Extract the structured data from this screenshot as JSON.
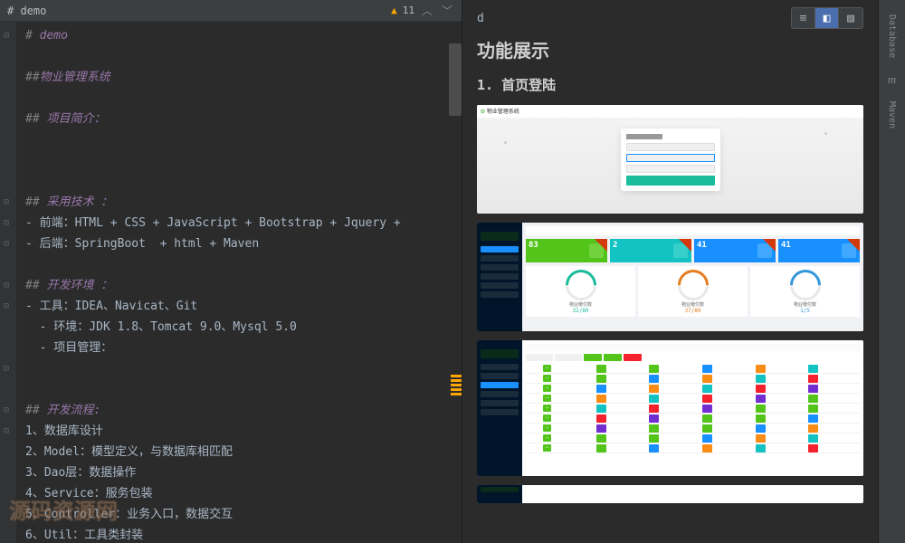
{
  "editor": {
    "tab_title": "# demo",
    "warning_count": "11",
    "lines": [
      {
        "type": "h1",
        "hash": "#",
        "text": " demo",
        "fold": true
      },
      {
        "type": "blank"
      },
      {
        "type": "h2",
        "hash": "##",
        "text": "物业管理系统"
      },
      {
        "type": "blank"
      },
      {
        "type": "h2i",
        "hash": "## ",
        "text": "项目简介："
      },
      {
        "type": "blank"
      },
      {
        "type": "blank"
      },
      {
        "type": "blank"
      },
      {
        "type": "h2i",
        "hash": "## ",
        "text": "采用技术 ：",
        "fold": true
      },
      {
        "type": "li",
        "text": "- 前端：HTML + CSS + JavaScript + Bootstrap + Jquery +",
        "fold": true
      },
      {
        "type": "li",
        "text": "- 后端：SpringBoot  + html + Maven",
        "fold": true
      },
      {
        "type": "blank"
      },
      {
        "type": "h2i",
        "hash": "## ",
        "text": "开发环境 ：",
        "fold": true
      },
      {
        "type": "li",
        "text": "- 工具：IDEA、Navicat、Git",
        "fold": true
      },
      {
        "type": "li2",
        "text": "  - 环境：JDK 1.8、Tomcat 9.0、Mysql 5.0"
      },
      {
        "type": "li2",
        "text": "  - 项目管理："
      },
      {
        "type": "blank",
        "fold": true
      },
      {
        "type": "blank"
      },
      {
        "type": "h2i",
        "hash": "## ",
        "text": "开发流程:",
        "fold": true
      },
      {
        "type": "li",
        "text": "1、数据库设计",
        "fold": true
      },
      {
        "type": "li",
        "text": "2、Model：模型定义，与数据库相匹配"
      },
      {
        "type": "li",
        "text": "3、Dao层：数据操作"
      },
      {
        "type": "li",
        "text": "4、Service：服务包装"
      },
      {
        "type": "li",
        "text": "5、Controller：业务入口，数据交互"
      },
      {
        "type": "li",
        "text": "6、Util：工具类封装"
      }
    ]
  },
  "preview": {
    "top_text": "d",
    "section_title": "功能展示",
    "subsection": "1. 首页登陆",
    "shot1": {
      "logo": "物业管理系统",
      "panel_title": "数据录入",
      "btn": "登录"
    },
    "shot2": {
      "stats": [
        {
          "num": "83",
          "bg": "#52c41a",
          "icon": "#73d13d"
        },
        {
          "num": "2",
          "bg": "#13c2c2",
          "icon": "#36cfc9"
        },
        {
          "num": "41",
          "bg": "#1890ff",
          "icon": "#40a9ff"
        },
        {
          "num": "41",
          "bg": "#1890ff",
          "icon": "#40a9ff"
        }
      ],
      "gauges": [
        {
          "label": "物业缴付数",
          "val": "32/80",
          "color": "#1abc9c"
        },
        {
          "label": "物业缴付数",
          "val": "37/80",
          "color": "#e67e22"
        },
        {
          "label": "物业缴付数",
          "val": "1/5",
          "color": "#3498db"
        }
      ]
    },
    "shot3": {
      "tag_colors": [
        "#52c41a",
        "#52c41a",
        "#1890ff",
        "#fa8c16",
        "#13c2c2",
        "#f5222d",
        "#722ed1"
      ]
    }
  },
  "right_panel": {
    "tabs": [
      "Database",
      "Maven"
    ]
  },
  "watermark": "源码资源网"
}
